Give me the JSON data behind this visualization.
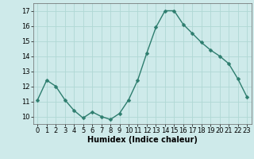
{
  "x": [
    0,
    1,
    2,
    3,
    4,
    5,
    6,
    7,
    8,
    9,
    10,
    11,
    12,
    13,
    14,
    15,
    16,
    17,
    18,
    19,
    20,
    21,
    22,
    23
  ],
  "y": [
    11.1,
    12.4,
    12.0,
    11.1,
    10.4,
    9.9,
    10.3,
    10.0,
    9.8,
    10.2,
    11.1,
    12.4,
    14.2,
    15.9,
    17.0,
    17.0,
    16.1,
    15.5,
    14.9,
    14.4,
    14.0,
    13.5,
    12.5,
    11.3
  ],
  "line_color": "#2d7d6e",
  "marker_color": "#2d7d6e",
  "bg_color": "#ceeaea",
  "grid_color": "#b0d8d4",
  "xlabel": "Humidex (Indice chaleur)",
  "xlim": [
    -0.5,
    23.5
  ],
  "ylim": [
    9.5,
    17.5
  ],
  "yticks": [
    10,
    11,
    12,
    13,
    14,
    15,
    16,
    17
  ],
  "xticks": [
    0,
    1,
    2,
    3,
    4,
    5,
    6,
    7,
    8,
    9,
    10,
    11,
    12,
    13,
    14,
    15,
    16,
    17,
    18,
    19,
    20,
    21,
    22,
    23
  ],
  "xlabel_fontsize": 7,
  "tick_fontsize": 6,
  "linewidth": 1.0,
  "markersize": 2.5
}
